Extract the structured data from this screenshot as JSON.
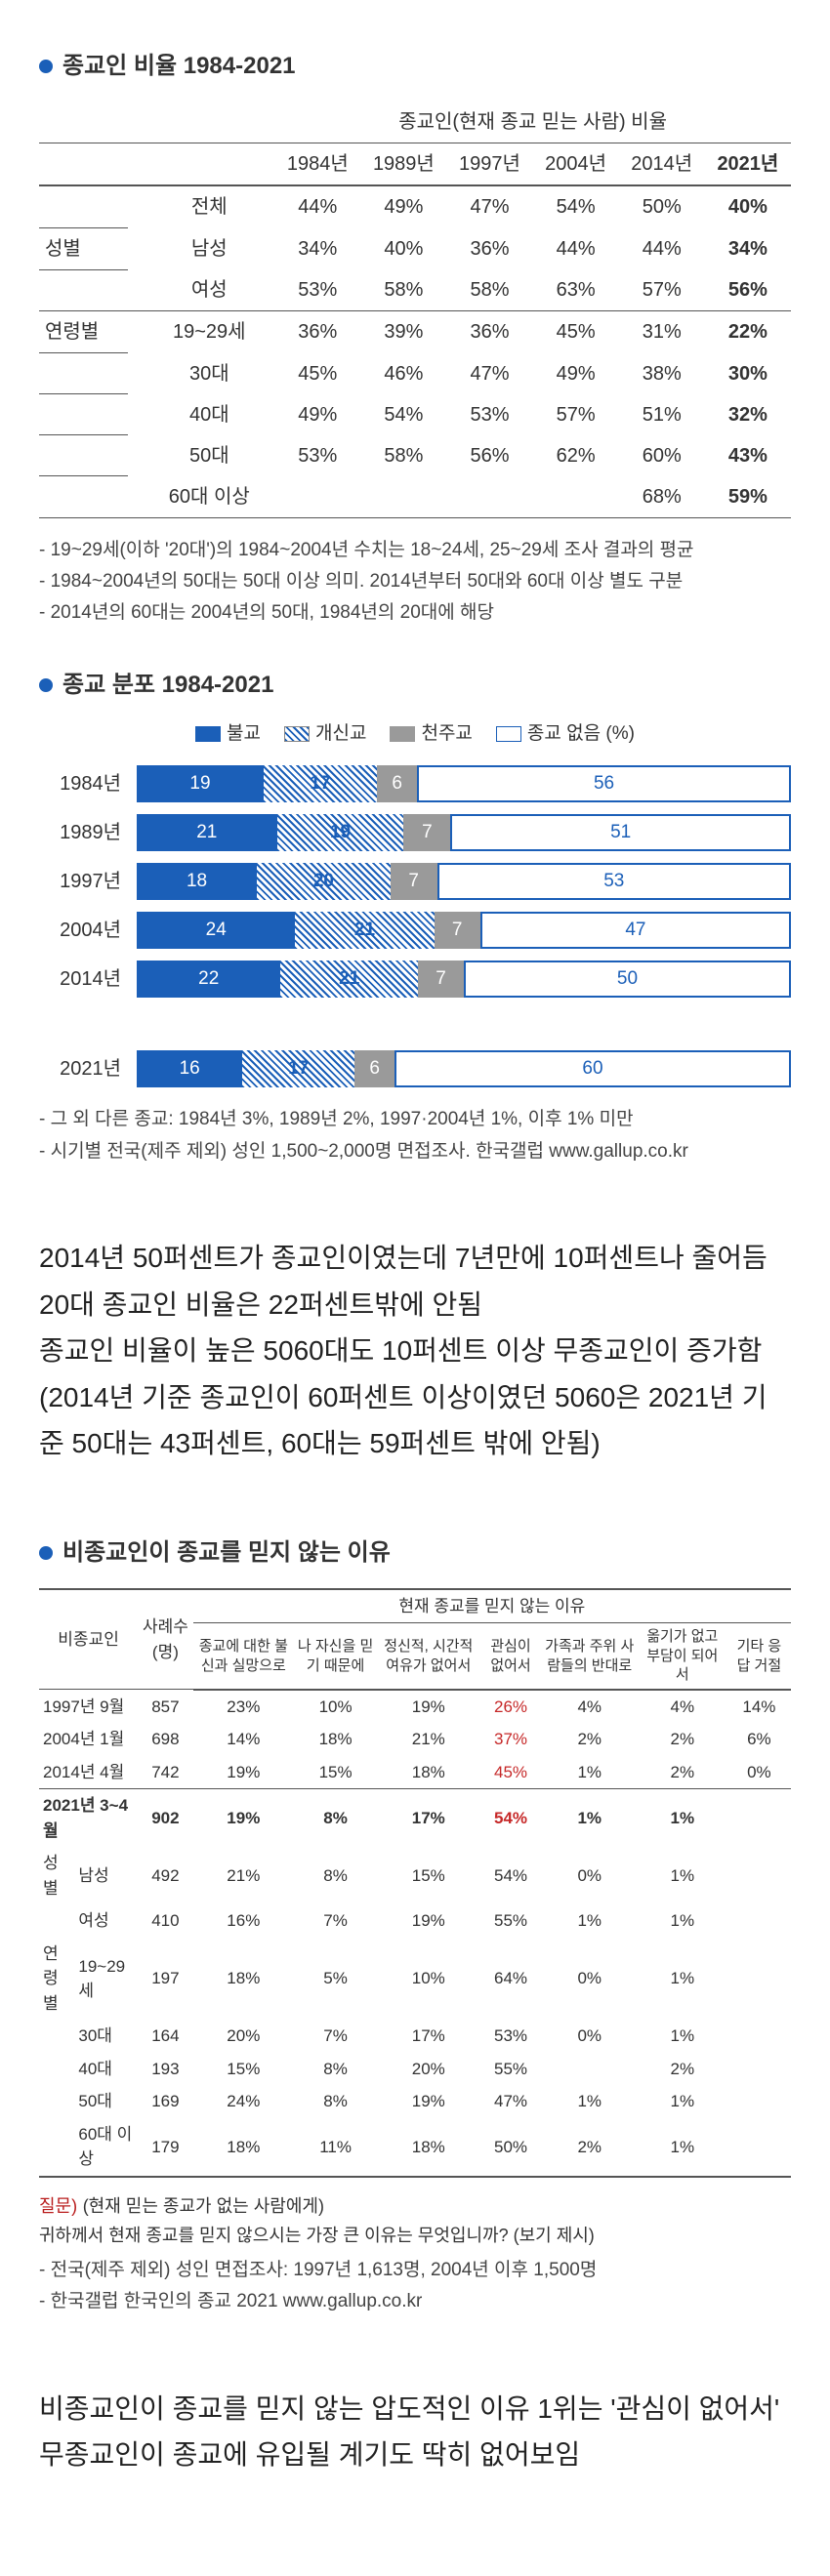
{
  "section1": {
    "title": "종교인 비율 1984-2021",
    "header_top": "종교인(현재 종교 믿는 사람) 비율",
    "years": [
      "1984년",
      "1989년",
      "1997년",
      "2004년",
      "2014년",
      "2021년"
    ],
    "rows": [
      {
        "g": "",
        "s": "전체",
        "v": [
          "44%",
          "49%",
          "47%",
          "54%",
          "50%",
          "40%"
        ],
        "first": true
      },
      {
        "g": "성별",
        "s": "남성",
        "v": [
          "34%",
          "40%",
          "36%",
          "44%",
          "44%",
          "34%"
        ],
        "first": false
      },
      {
        "g": "",
        "s": "여성",
        "v": [
          "53%",
          "58%",
          "58%",
          "63%",
          "57%",
          "56%"
        ],
        "first": false
      },
      {
        "g": "연령별",
        "s": "19~29세",
        "v": [
          "36%",
          "39%",
          "36%",
          "45%",
          "31%",
          "22%"
        ],
        "first": true
      },
      {
        "g": "",
        "s": "30대",
        "v": [
          "45%",
          "46%",
          "47%",
          "49%",
          "38%",
          "30%"
        ],
        "first": false
      },
      {
        "g": "",
        "s": "40대",
        "v": [
          "49%",
          "54%",
          "53%",
          "57%",
          "51%",
          "32%"
        ],
        "first": false
      },
      {
        "g": "",
        "s": "50대",
        "v": [
          "53%",
          "58%",
          "56%",
          "62%",
          "60%",
          "43%"
        ],
        "first": false
      },
      {
        "g": "",
        "s": "60대 이상",
        "v": [
          "",
          "",
          "",
          "",
          "68%",
          "59%"
        ],
        "first": false
      }
    ],
    "notes": [
      "- 19~29세(이하 '20대')의 1984~2004년 수치는 18~24세, 25~29세 조사 결과의 평균",
      "- 1984~2004년의 50대는 50대 이상 의미. 2014년부터 50대와 60대 이상 별도 구분",
      "- 2014년의 60대는 2004년의 50대, 1984년의 20대에 해당"
    ]
  },
  "section2": {
    "title": "종교 분포 1984-2021",
    "legend": [
      "불교",
      "개신교",
      "천주교",
      "종교 없음 (%)"
    ],
    "rows": [
      {
        "y": "1984년",
        "v": [
          19,
          17,
          6,
          56
        ]
      },
      {
        "y": "1989년",
        "v": [
          21,
          19,
          7,
          51
        ]
      },
      {
        "y": "1997년",
        "v": [
          18,
          20,
          7,
          53
        ]
      },
      {
        "y": "2004년",
        "v": [
          24,
          21,
          7,
          47
        ]
      },
      {
        "y": "2014년",
        "v": [
          22,
          21,
          7,
          50
        ]
      }
    ],
    "row2021": {
      "y": "2021년",
      "v": [
        16,
        17,
        6,
        60
      ]
    },
    "notes": [
      "- 그 외 다른 종교: 1984년 3%, 1989년 2%, 1997·2004년 1%, 이후 1% 미만",
      "- 시기별 전국(제주 제외) 성인 1,500~2,000명 면접조사. 한국갤럽 www.gallup.co.kr"
    ]
  },
  "body1": [
    "2014년 50퍼센트가 종교인이였는데 7년만에 10퍼센트나 줄어듬",
    "20대 종교인 비율은 22퍼센트밖에 안됨",
    "종교인 비율이 높은 5060대도 10퍼센트 이상 무종교인이 증가함",
    "(2014년 기준 종교인이 60퍼센트 이상이였던 5060은 2021년 기준 50대는 43퍼센트, 60대는 59퍼센트 밖에 안됨)"
  ],
  "section3": {
    "title": "비종교인이 종교를 믿지 않는 이유",
    "h1": "비종교인",
    "h2": "사례수 (명)",
    "h3": "현재 종교를 믿지 않는 이유",
    "cols": [
      "종교에 대한 불신과 실망으로",
      "나 자신을 믿기 때문에",
      "정신적, 시간적 여유가 없어서",
      "관심이 없어서",
      "가족과 주위 사람들의 반대로",
      "옮기가 없고 부담이 되어서",
      "기타 응답 거절"
    ],
    "rows": [
      {
        "lbl": "1997년 9월",
        "n": "857",
        "v": [
          "23%",
          "10%",
          "19%",
          "26%",
          "4%",
          "4%",
          "14%"
        ],
        "red": 3,
        "rule": false,
        "bold": false
      },
      {
        "lbl": "2004년 1월",
        "n": "698",
        "v": [
          "14%",
          "18%",
          "21%",
          "37%",
          "2%",
          "2%",
          "6%"
        ],
        "red": 3,
        "rule": false,
        "bold": false
      },
      {
        "lbl": "2014년 4월",
        "n": "742",
        "v": [
          "19%",
          "15%",
          "18%",
          "45%",
          "1%",
          "2%",
          "0%"
        ],
        "red": 3,
        "rule": true,
        "bold": false
      },
      {
        "lbl": "2021년 3~4월",
        "n": "902",
        "v": [
          "19%",
          "8%",
          "17%",
          "54%",
          "1%",
          "1%",
          ""
        ],
        "red": 3,
        "rule": false,
        "bold": true
      }
    ],
    "sub": [
      {
        "g": "성별",
        "s": "남성",
        "n": "492",
        "v": [
          "21%",
          "8%",
          "15%",
          "54%",
          "0%",
          "1%",
          ""
        ]
      },
      {
        "g": "",
        "s": "여성",
        "n": "410",
        "v": [
          "16%",
          "7%",
          "19%",
          "55%",
          "1%",
          "1%",
          ""
        ]
      },
      {
        "g": "연령별",
        "s": "19~29세",
        "n": "197",
        "v": [
          "18%",
          "5%",
          "10%",
          "64%",
          "0%",
          "1%",
          ""
        ]
      },
      {
        "g": "",
        "s": "30대",
        "n": "164",
        "v": [
          "20%",
          "7%",
          "17%",
          "53%",
          "0%",
          "1%",
          ""
        ]
      },
      {
        "g": "",
        "s": "40대",
        "n": "193",
        "v": [
          "15%",
          "8%",
          "20%",
          "55%",
          "",
          "2%",
          ""
        ]
      },
      {
        "g": "",
        "s": "50대",
        "n": "169",
        "v": [
          "24%",
          "8%",
          "19%",
          "47%",
          "1%",
          "1%",
          ""
        ]
      },
      {
        "g": "",
        "s": "60대 이상",
        "n": "179",
        "v": [
          "18%",
          "11%",
          "18%",
          "50%",
          "2%",
          "1%",
          ""
        ]
      }
    ],
    "q_label": "질문)",
    "q_text": "(현재 믿는 종교가 없는 사람에게)\n귀하께서 현재 종교를 믿지 않으시는 가장 큰 이유는 무엇입니까? (보기 제시)",
    "foot": [
      "- 전국(제주 제외) 성인 면접조사: 1997년 1,613명, 2004년 이후 1,500명",
      "- 한국갤럽 한국인의 종교 2021 www.gallup.co.kr"
    ]
  },
  "body2": [
    "비종교인이 종교를 믿지 않는 압도적인 이유 1위는 '관심이 없어서'",
    "무종교인이 종교에 유입될 계기도 딱히 없어보임"
  ]
}
